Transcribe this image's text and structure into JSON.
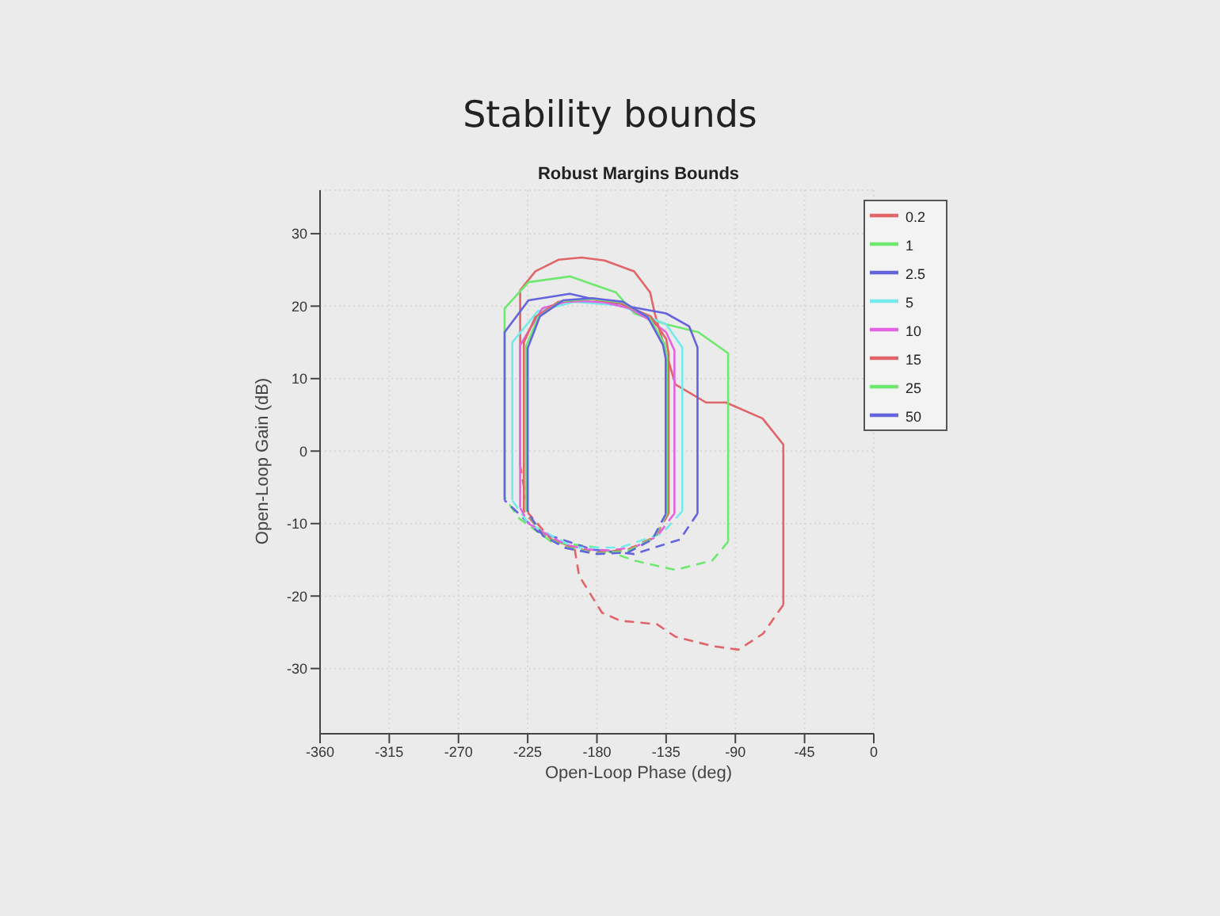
{
  "chart_data": {
    "type": "line",
    "title": "Stability bounds",
    "subtitle": "Robust Margins Bounds",
    "xlabel": "Open-Loop Phase (deg)",
    "ylabel": "Open-Loop Gain (dB)",
    "xlim": [
      -360,
      0
    ],
    "xticks": [
      -360,
      -315,
      -270,
      -225,
      -180,
      -135,
      -90,
      -45,
      0
    ],
    "ylim": [
      -39,
      36
    ],
    "yticks": [
      -30,
      -20,
      -10,
      0,
      10,
      20,
      30
    ],
    "grid": true,
    "legend": "top right",
    "series": [
      {
        "name": "0.2",
        "color": "#e06468",
        "line_style": "solid",
        "x": [
          -229.9,
          -229.9,
          -220,
          -205,
          -190,
          -175,
          -155.8,
          -145.4,
          -142.4,
          -129,
          -109,
          -96,
          -72.3,
          -58.8,
          -58.8
        ],
        "values": [
          -2,
          22.2,
          24.8,
          26.4,
          26.7,
          26.3,
          24.8,
          21.9,
          19,
          9.2,
          6.7,
          6.7,
          4.5,
          0.9,
          -21.2
        ]
      },
      {
        "color": "#e06468",
        "line_style": "dashed",
        "x": [
          -58.8,
          -72,
          -88,
          -105,
          -129,
          -140.9,
          -164.8,
          -176.7,
          -191.6,
          -194.6,
          -209.6,
          -224.5,
          -229.9
        ],
        "values": [
          -21.2,
          -25.2,
          -27.4,
          -26.9,
          -25.6,
          -23.9,
          -23.4,
          -22.3,
          -17.2,
          -13.3,
          -12.2,
          -8.6,
          -2
        ]
      },
      {
        "name": "1",
        "color": "#6ee86e",
        "line_style": "solid",
        "x": [
          -240,
          -240,
          -224.5,
          -197.6,
          -167.7,
          -155.8,
          -135,
          -114,
          -94.7,
          -94.7
        ],
        "values": [
          -6.4,
          19.7,
          23.3,
          24.1,
          21.9,
          19,
          17.5,
          16.4,
          13.5,
          -12.5
        ]
      },
      {
        "color": "#6ee86e",
        "line_style": "dashed",
        "x": [
          -94.7,
          -105,
          -129,
          -155.8,
          -179.7,
          -209.6,
          -230.5,
          -240
        ],
        "values": [
          -12.5,
          -15.1,
          -16.4,
          -15.1,
          -13.3,
          -12.5,
          -9.3,
          -6.4
        ]
      },
      {
        "name": "2.5",
        "color": "#6464dc",
        "line_style": "solid",
        "x": [
          -240,
          -240,
          -224.5,
          -197.6,
          -170.8,
          -135,
          -120,
          -114.6,
          -114.6
        ],
        "values": [
          -6.8,
          16.4,
          20.8,
          21.7,
          20.4,
          19,
          17.2,
          14.3,
          -8.6
        ]
      },
      {
        "color": "#6464dc",
        "line_style": "dashed",
        "x": [
          -114.6,
          -126,
          -155.8,
          -182.7,
          -218.5,
          -240
        ],
        "values": [
          -8.6,
          -12.2,
          -14.2,
          -13.6,
          -11.1,
          -6.8
        ]
      },
      {
        "name": "5",
        "color": "#74eaea",
        "line_style": "solid",
        "x": [
          -235,
          -235,
          -218.5,
          -194.6,
          -164.8,
          -135,
          -124.5,
          -124.5
        ],
        "values": [
          -6.8,
          15,
          19.3,
          20.6,
          20.1,
          17.5,
          14.3,
          -8.3
        ]
      },
      {
        "color": "#74eaea",
        "line_style": "dashed",
        "x": [
          -124.5,
          -137.9,
          -164.8,
          -194.6,
          -224.5,
          -235
        ],
        "values": [
          -8.3,
          -11.4,
          -13.3,
          -13.3,
          -10,
          -6.8
        ]
      },
      {
        "name": "10",
        "color": "#e264e2",
        "line_style": "solid",
        "x": [
          -229.9,
          -229.9,
          -215.5,
          -200,
          -188.7,
          -175,
          -158.8,
          -145,
          -135,
          -129.6,
          -129.6
        ],
        "values": [
          -7.8,
          14.6,
          19.7,
          20.6,
          20.7,
          20.5,
          19.7,
          18,
          16.4,
          13.9,
          -8.6
        ]
      },
      {
        "color": "#e264e2",
        "line_style": "dashed",
        "x": [
          -129.6,
          -141,
          -155,
          -170.8,
          -185,
          -200.6,
          -215,
          -224.5,
          -229.9
        ],
        "values": [
          -8.6,
          -11.8,
          -13.2,
          -13.7,
          -13.6,
          -12.9,
          -11.2,
          -10,
          -7.8
        ]
      },
      {
        "name": "15",
        "color": "#e06468",
        "line_style": "solid",
        "x": [
          -227.5,
          -227.5,
          -220,
          -205,
          -185,
          -165,
          -145,
          -135,
          -133.4,
          -133.4
        ],
        "values": [
          -8.3,
          15,
          18.5,
          20.6,
          21,
          20.4,
          18.6,
          15.5,
          13.5,
          -8.6
        ]
      },
      {
        "color": "#e06468",
        "line_style": "dashed",
        "x": [
          -133.4,
          -142,
          -160,
          -180,
          -200,
          -215,
          -227.5
        ],
        "values": [
          -8.6,
          -11.8,
          -13.6,
          -14,
          -13.2,
          -11.5,
          -8.3
        ]
      },
      {
        "name": "25",
        "color": "#6ee86e",
        "line_style": "solid",
        "x": [
          -226,
          -226,
          -218,
          -203,
          -183,
          -163,
          -146,
          -136,
          -134.5,
          -134.5
        ],
        "values": [
          -8.3,
          14.5,
          18.5,
          20.7,
          21,
          20.5,
          18.4,
          14.8,
          13,
          -8.6
        ]
      },
      {
        "color": "#6ee86e",
        "line_style": "dashed",
        "x": [
          -134.5,
          -143,
          -160,
          -180,
          -200,
          -215,
          -226
        ],
        "values": [
          -8.6,
          -12,
          -13.8,
          -14.1,
          -13.3,
          -11.6,
          -8.3
        ]
      },
      {
        "name": "50",
        "color": "#6464dc",
        "line_style": "solid",
        "x": [
          -225,
          -225,
          -217,
          -202,
          -183,
          -163,
          -147,
          -137,
          -135.3,
          -135.3
        ],
        "values": [
          -8.4,
          14.2,
          18.6,
          20.8,
          21.1,
          20.6,
          18.5,
          14.6,
          12.8,
          -8.7
        ]
      },
      {
        "color": "#6464dc",
        "line_style": "dashed",
        "x": [
          -135.3,
          -144,
          -160,
          -180,
          -200,
          -215,
          -225
        ],
        "values": [
          -8.7,
          -12.2,
          -14,
          -14.2,
          -13.4,
          -11.7,
          -8.4
        ]
      }
    ]
  }
}
